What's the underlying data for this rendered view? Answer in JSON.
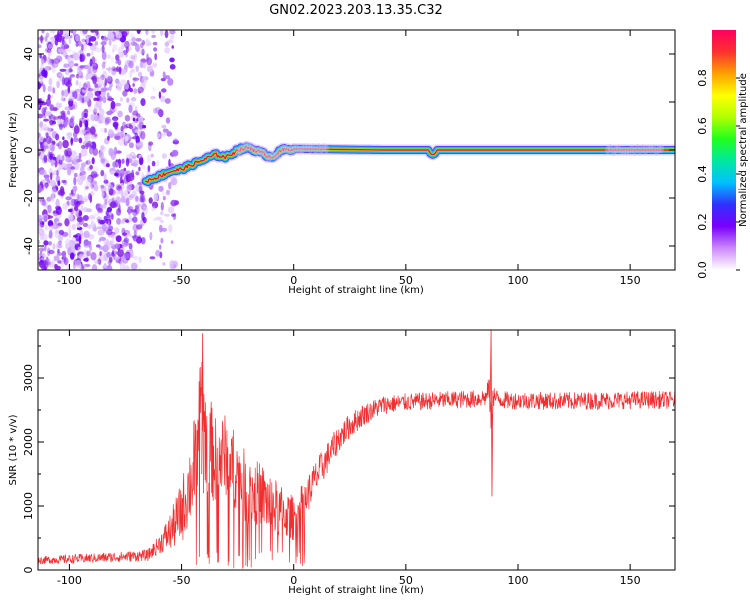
{
  "title": "GN02.2023.203.13.35.C32",
  "colors": {
    "snr_line": "#f03030",
    "ridge_core": "#e8104a",
    "axis": "#000000"
  },
  "chart_data": [
    {
      "type": "heatmap",
      "xlabel": "Height of straight line (km)",
      "ylabel": "Frequency (Hz)",
      "xlim": [
        -114,
        170
      ],
      "ylim": [
        -50,
        50
      ],
      "xticks": [
        -100,
        -50,
        0,
        50,
        100,
        150
      ],
      "xtick_labels": [
        "-100",
        "-50",
        "0",
        "50",
        "100",
        "150"
      ],
      "yticks": [
        -40,
        -20,
        0,
        20,
        40
      ],
      "ytick_labels": [
        "-40",
        "-20",
        "0",
        "20",
        "40"
      ],
      "noise_region_x": [
        -114,
        -52
      ],
      "ridge": {
        "x": [
          -66,
          -60,
          -55,
          -50,
          -45,
          -40,
          -35,
          -30,
          -25,
          -20,
          -15,
          -10,
          -5,
          0,
          15,
          40,
          60,
          61,
          62,
          63,
          64,
          80,
          100,
          108,
          140,
          150,
          160,
          170
        ],
        "y": [
          -13,
          -11,
          -9,
          -8,
          -6,
          -4,
          -2,
          -3,
          0,
          1,
          -1,
          -3,
          0,
          0.5,
          0.3,
          0,
          0,
          -1.5,
          -2,
          -1.5,
          0,
          0,
          0,
          0,
          0,
          0,
          0,
          0
        ]
      },
      "colorbar": {
        "label": "Normalized spectral amplitude",
        "ticks": [
          0.0,
          0.2,
          0.4,
          0.6,
          0.8
        ],
        "tick_labels": [
          "0.0",
          "0.2",
          "0.4",
          "0.6",
          "0.8"
        ],
        "range": [
          0,
          1
        ],
        "colormap": [
          "#ffffff",
          "#cc88ff",
          "#7a00ff",
          "#3030ff",
          "#00c0ff",
          "#00e8a0",
          "#20ff20",
          "#b0ff00",
          "#ffff00",
          "#ffa000",
          "#ff3030",
          "#ff0060"
        ]
      }
    },
    {
      "type": "line",
      "xlabel": "Height of straight line (km)",
      "ylabel": "SNR (10 * v/v)",
      "xlim": [
        -114,
        170
      ],
      "ylim": [
        0,
        3750
      ],
      "xticks": [
        -100,
        -50,
        0,
        50,
        100,
        150
      ],
      "xtick_labels": [
        "-100",
        "-50",
        "0",
        "50",
        "100",
        "150"
      ],
      "yticks": [
        0,
        1000,
        2000,
        3000
      ],
      "ytick_labels": [
        "0",
        "1000",
        "2000",
        "3000"
      ],
      "series": [
        {
          "x": [
            -114,
            -100,
            -80,
            -65,
            -60,
            -55,
            -50,
            -45,
            -42,
            -41,
            -40,
            -35,
            -30,
            -25,
            -20,
            -15,
            -10,
            -5,
            0,
            5,
            10,
            15,
            20,
            25,
            30,
            35,
            40,
            50,
            60,
            70,
            80,
            86,
            87,
            88,
            89,
            90,
            95,
            100,
            120,
            140,
            160,
            170
          ],
          "y": [
            150,
            170,
            200,
            230,
            400,
            600,
            900,
            1500,
            2300,
            3000,
            2200,
            1700,
            1800,
            1500,
            1200,
            1200,
            1000,
            900,
            800,
            1100,
            1450,
            1750,
            2050,
            2250,
            2400,
            2500,
            2580,
            2620,
            2640,
            2660,
            2670,
            2700,
            2900,
            2300,
            2750,
            2680,
            2650,
            2650,
            2640,
            2650,
            2660,
            2650
          ],
          "spread": [
            60,
            70,
            80,
            90,
            150,
            300,
            500,
            700,
            900,
            700,
            900,
            700,
            650,
            600,
            550,
            500,
            500,
            400,
            350,
            300,
            280,
            250,
            220,
            200,
            180,
            160,
            150,
            140,
            140,
            140,
            140,
            150,
            200,
            300,
            200,
            150,
            140,
            140,
            140,
            140,
            140,
            140
          ]
        }
      ]
    }
  ]
}
